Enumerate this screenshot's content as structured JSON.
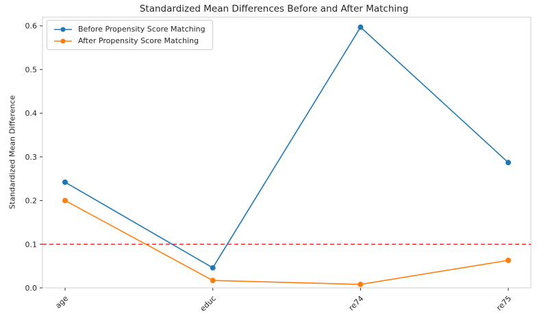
{
  "chart_data": {
    "type": "line",
    "title": "Standardized Mean Differences Before and After Matching",
    "ylabel": "Standardized Mean Difference",
    "xlabel": "",
    "categories": [
      "age",
      "educ",
      "re74",
      "re75"
    ],
    "series": [
      {
        "name": "Before Propensity Score Matching",
        "color": "#1f77b4",
        "values": [
          0.242,
          0.046,
          0.597,
          0.287
        ]
      },
      {
        "name": "After Propensity Score Matching",
        "color": "#ff7f0e",
        "values": [
          0.2,
          0.017,
          0.008,
          0.063
        ]
      }
    ],
    "threshold": {
      "value": 0.1,
      "color": "#ff2222",
      "style": "dashed"
    },
    "ylim": [
      0.0,
      0.62
    ],
    "yticks": [
      0.0,
      0.1,
      0.2,
      0.3,
      0.4,
      0.5,
      0.6
    ],
    "grid": false,
    "legend_position": "upper left",
    "marker": "circle"
  }
}
